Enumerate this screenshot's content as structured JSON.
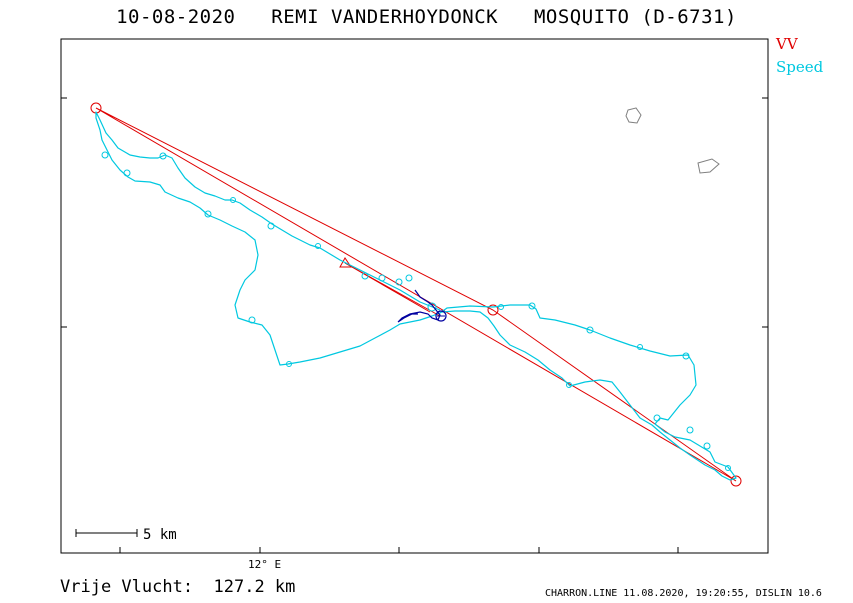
{
  "header": {
    "date": "10-08-2020",
    "pilot": "REMI VANDERHOYDONCK",
    "glider": "MOSQUITO (D-6731)"
  },
  "legend": {
    "vv": "VV",
    "speed": "Speed"
  },
  "colors": {
    "task_line": "#e00000",
    "track": "#00c8e0",
    "track_dark": "#0000a0",
    "airspace": "#808080",
    "frame": "#000000"
  },
  "map": {
    "longitude_label": "12° E",
    "scale_label": "5 km"
  },
  "footer": {
    "distance": "Vrije Vlucht:  127.2 km",
    "credit": "CHARRON.LINE 11.08.2020, 19:20:55, DISLIN 10.6"
  }
}
